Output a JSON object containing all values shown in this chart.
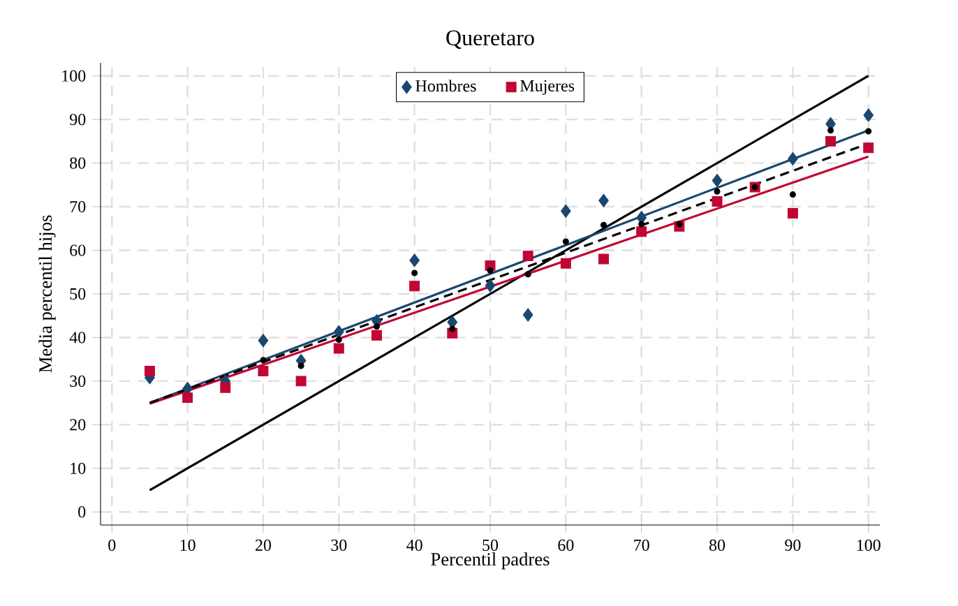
{
  "chart_data": {
    "type": "scatter",
    "title": "Queretaro",
    "xlabel": "Percentil padres",
    "ylabel": "Media percentil hijos",
    "x": [
      5,
      10,
      15,
      20,
      25,
      30,
      35,
      40,
      45,
      50,
      55,
      60,
      65,
      70,
      75,
      80,
      85,
      90,
      95,
      100
    ],
    "xlim": [
      -1.5,
      101.5
    ],
    "ylim": [
      -3,
      103
    ],
    "xticks": [
      0,
      10,
      20,
      30,
      40,
      50,
      60,
      70,
      80,
      90,
      100
    ],
    "yticks": [
      0,
      10,
      20,
      30,
      40,
      50,
      60,
      70,
      80,
      90,
      100
    ],
    "grid": true,
    "legend": "top",
    "line_style": "solid",
    "series": [
      {
        "name": "Hombres",
        "color": "#1a476f",
        "marker": "diamond",
        "values": [
          30.8,
          28.3,
          30,
          39.3,
          34.7,
          41.3,
          43.8,
          57.7,
          43.5,
          51.9,
          45.2,
          69,
          71.4,
          67.5,
          null,
          76,
          null,
          81,
          89,
          91
        ]
      },
      {
        "name": "Mujeres",
        "color": "#c10534",
        "marker": "square",
        "values": [
          32.3,
          26.2,
          28.5,
          32.3,
          30,
          37.5,
          40.5,
          51.8,
          41,
          56.5,
          58.7,
          57,
          58,
          64.3,
          65.5,
          71.2,
          74.5,
          68.5,
          85,
          83.5
        ]
      },
      {
        "color": "#000000",
        "marker": "circle",
        "values": [
          null,
          null,
          null,
          34.8,
          33.5,
          39.5,
          42.5,
          54.8,
          42,
          55.4,
          54.5,
          62,
          65.8,
          66,
          66,
          73.5,
          74.5,
          72.8,
          87.5,
          87.3
        ]
      },
      {
        "type": "line",
        "color": "#000000",
        "values": [
          5,
          null,
          null,
          null,
          null,
          null,
          null,
          null,
          null,
          null,
          null,
          null,
          null,
          null,
          null,
          null,
          null,
          null,
          null,
          100
        ]
      },
      {
        "type": "line",
        "color": "#1a476f",
        "values": [
          25,
          null,
          null,
          null,
          null,
          null,
          null,
          null,
          null,
          null,
          null,
          null,
          null,
          null,
          null,
          null,
          null,
          null,
          null,
          87.5
        ]
      },
      {
        "type": "line",
        "color": "#c10534",
        "values": [
          24.8,
          null,
          null,
          null,
          null,
          null,
          null,
          null,
          null,
          null,
          null,
          null,
          null,
          null,
          null,
          null,
          null,
          null,
          null,
          81.5
        ]
      },
      {
        "type": "line",
        "color": "#000000",
        "line_style": "dashed",
        "values": [
          25,
          null,
          null,
          null,
          null,
          null,
          null,
          null,
          null,
          null,
          null,
          null,
          null,
          null,
          null,
          null,
          null,
          null,
          null,
          84.5
        ]
      }
    ]
  }
}
